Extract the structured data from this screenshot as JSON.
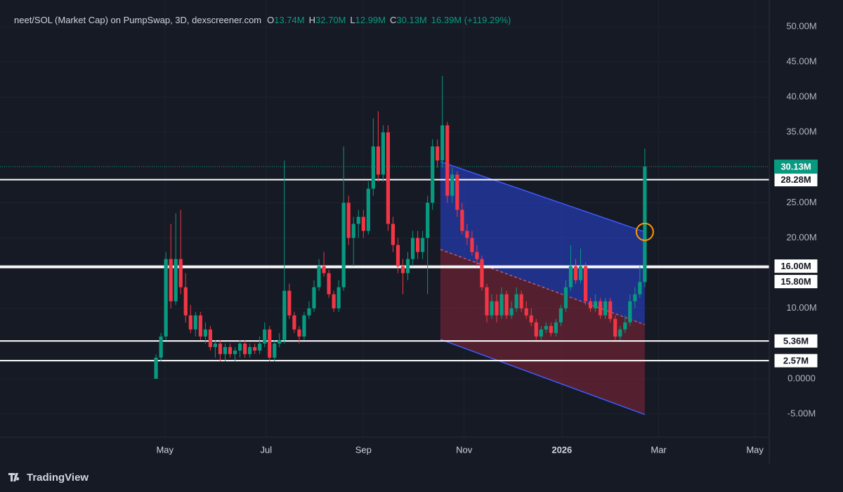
{
  "chart_data": {
    "type": "candlestick",
    "title": "neet/SOL (Market Cap) on PumpSwap, 3D, dexscreener.com",
    "legend": [
      {
        "key": "O",
        "value": "13.74M"
      },
      {
        "key": "H",
        "value": "32.70M"
      },
      {
        "key": "L",
        "value": "12.99M"
      },
      {
        "key": "C",
        "value": "30.13M"
      }
    ],
    "change": "16.39M (+119.29%)",
    "brand": "TradingView",
    "up_color": "#089981",
    "down_color": "#f23645",
    "x": [
      0,
      1,
      2,
      3,
      4,
      5,
      6,
      7,
      8,
      9,
      10,
      11,
      12,
      13,
      14,
      15,
      16,
      17,
      18,
      19,
      20,
      21,
      22,
      23,
      24,
      25,
      26,
      27,
      28,
      29,
      30,
      31,
      32,
      33,
      34,
      35,
      36,
      37,
      38,
      39,
      40,
      41,
      42,
      43,
      44,
      45,
      46,
      47,
      48,
      49,
      50,
      51,
      52,
      53,
      54,
      55,
      56,
      57,
      58,
      59,
      60,
      61,
      62,
      63,
      64,
      65,
      66,
      67,
      68,
      69,
      70,
      71,
      72,
      73,
      74,
      75,
      76,
      77,
      78,
      79,
      80,
      81,
      82,
      83,
      84,
      85,
      86,
      87,
      88,
      89,
      90,
      91,
      92,
      93,
      94,
      95,
      96,
      97,
      98,
      99
    ],
    "open": [
      0,
      3,
      6,
      17,
      11,
      17,
      13,
      9,
      7,
      9,
      6,
      7,
      4.5,
      5,
      3.5,
      4.5,
      3.5,
      4,
      5,
      3.5,
      4.5,
      4,
      5,
      7,
      3,
      5,
      5.5,
      12.5,
      9,
      7,
      6,
      9,
      10,
      13,
      16,
      15,
      12,
      10,
      13,
      25,
      20,
      22,
      23,
      21,
      27,
      33,
      29,
      35,
      22,
      19,
      16,
      15,
      17,
      20,
      18,
      20,
      25,
      33,
      31,
      36,
      26,
      29,
      24,
      21,
      20,
      18,
      17,
      13,
      9,
      11,
      9,
      12,
      9,
      10,
      12,
      10,
      9,
      8,
      6,
      7,
      7.5,
      6.5,
      8,
      10,
      13,
      16,
      14,
      16,
      11,
      10,
      11,
      9,
      11,
      8.5,
      6,
      7,
      8,
      11,
      12,
      13.74
    ],
    "high": [
      3.5,
      6.5,
      18,
      22,
      23.5,
      24,
      15,
      10.5,
      9.5,
      9.5,
      8,
      7.5,
      5.5,
      5.5,
      5,
      5,
      4.5,
      5.5,
      5.5,
      5,
      5,
      6,
      8,
      7.5,
      5.5,
      6.5,
      31,
      13.5,
      9.5,
      7.5,
      9.5,
      11,
      14,
      17,
      18,
      15.5,
      12.5,
      14,
      33,
      26,
      23,
      24,
      24,
      28,
      37,
      38,
      36,
      36,
      23,
      20,
      17,
      18,
      21,
      21,
      21,
      26,
      34,
      34,
      43,
      36.5,
      30,
      29.5,
      25,
      22,
      21,
      19,
      17.5,
      13.5,
      12,
      12,
      13,
      12.5,
      11,
      13,
      12.5,
      11,
      10,
      8.5,
      7.5,
      8,
      8,
      8.5,
      10.5,
      14,
      19,
      17,
      18.5,
      16.5,
      11.5,
      12,
      11.5,
      11.5,
      11.5,
      9,
      7.5,
      9,
      12,
      13,
      16,
      32.7
    ],
    "low": [
      0,
      2.5,
      5.5,
      10,
      10.5,
      12,
      8,
      6.5,
      6,
      5.5,
      5,
      4,
      3,
      2.5,
      2.5,
      3,
      2.5,
      3,
      3,
      3,
      3.5,
      3.5,
      4.5,
      2.5,
      2.5,
      4.5,
      5,
      8.5,
      6.5,
      5,
      5.5,
      8.5,
      9.5,
      12.5,
      14.5,
      11.5,
      9.5,
      9.5,
      12.5,
      19,
      16,
      20,
      20,
      20.5,
      26,
      28,
      28,
      21,
      18,
      15,
      12,
      14,
      16,
      17,
      17,
      12,
      24,
      30,
      30,
      25,
      25,
      23,
      20.5,
      19,
      17.5,
      16,
      12.5,
      8,
      8.5,
      8,
      8.5,
      8.5,
      8.5,
      9.5,
      9.5,
      8.5,
      7.5,
      5.5,
      5.5,
      6.5,
      6,
      6,
      7.5,
      9.5,
      12.5,
      13.5,
      13.5,
      10.5,
      9.5,
      9.5,
      8.5,
      8.5,
      8,
      5.5,
      5.5,
      6.5,
      7.5,
      10,
      11.5,
      12.99
    ],
    "close": [
      3,
      6,
      17,
      11,
      17,
      13,
      9,
      7,
      9,
      6,
      7,
      4.5,
      5,
      3.5,
      4.5,
      3.5,
      4,
      5,
      3.5,
      4.5,
      4,
      5,
      7,
      3,
      5,
      5.5,
      12.5,
      9,
      7,
      6,
      9,
      10,
      13,
      16,
      15,
      12,
      10,
      13,
      25,
      20,
      22,
      23,
      21,
      27,
      33,
      29,
      35,
      22,
      19,
      16,
      15,
      17,
      20,
      18,
      20,
      25,
      33,
      31,
      36,
      26,
      29,
      24,
      21,
      20,
      18,
      17,
      13,
      9,
      11,
      9,
      12,
      9,
      10,
      12,
      10,
      9,
      8,
      6,
      7,
      7.5,
      6.5,
      8,
      10,
      13,
      16,
      14,
      16,
      11,
      10,
      11,
      9,
      11,
      8.5,
      6,
      7,
      8,
      11,
      12,
      13.74,
      30.13
    ],
    "xlim": [
      -31.6,
      124.2
    ],
    "xticks": [
      {
        "value": 1.8,
        "label": "May"
      },
      {
        "value": 22.3,
        "label": "Jul"
      },
      {
        "value": 42.0,
        "label": "Sep"
      },
      {
        "value": 62.4,
        "label": "Nov"
      },
      {
        "value": 82.2,
        "label": "2026"
      },
      {
        "value": 101.8,
        "label": "Mar"
      },
      {
        "value": 121.3,
        "label": "May"
      }
    ],
    "ylim": [
      -8.3,
      53.8
    ],
    "yticks": [
      {
        "value": 50,
        "label": "50.00M"
      },
      {
        "value": 45,
        "label": "45.00M"
      },
      {
        "value": 40,
        "label": "40.00M"
      },
      {
        "value": 35,
        "label": "35.00M"
      },
      {
        "value": 25,
        "label": "25.00M"
      },
      {
        "value": 20,
        "label": "20.00M"
      },
      {
        "value": 10,
        "label": "10.00M"
      },
      {
        "value": 0,
        "label": "0.0000"
      },
      {
        "value": -5,
        "label": "-5.00M"
      }
    ],
    "grid": true,
    "levels": [
      {
        "value": 28.28,
        "label": "28.28M"
      },
      {
        "value": 16,
        "label": "16.00M"
      },
      {
        "value": 15.8,
        "label": "15.80M"
      },
      {
        "value": 5.36,
        "label": "5.36M"
      },
      {
        "value": 2.57,
        "label": "2.57M"
      }
    ],
    "last_price": {
      "value": 30.13,
      "label": "30.13M"
    },
    "channel": {
      "x": [
        57.6,
        99
      ],
      "upper": [
        30.84,
        20.86
      ],
      "middle": [
        18.36,
        7.68
      ],
      "lower": [
        5.59,
        -5.09
      ]
    }
  }
}
